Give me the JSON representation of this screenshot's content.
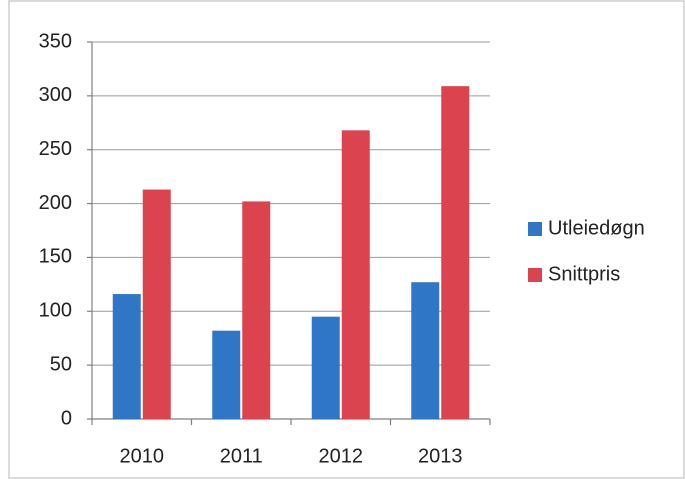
{
  "chart_data": {
    "type": "bar",
    "categories": [
      "2010",
      "2011",
      "2012",
      "2013"
    ],
    "series": [
      {
        "name": "Utleiedøgn",
        "color": "#2f76c6",
        "values": [
          116,
          82,
          95,
          127
        ]
      },
      {
        "name": "Snittpris",
        "color": "#db434f",
        "values": [
          213,
          202,
          268,
          309
        ]
      }
    ],
    "ylim": [
      0,
      350
    ],
    "yticks": [
      0,
      50,
      100,
      150,
      200,
      250,
      300,
      350
    ],
    "grid": true,
    "legend": "right"
  }
}
